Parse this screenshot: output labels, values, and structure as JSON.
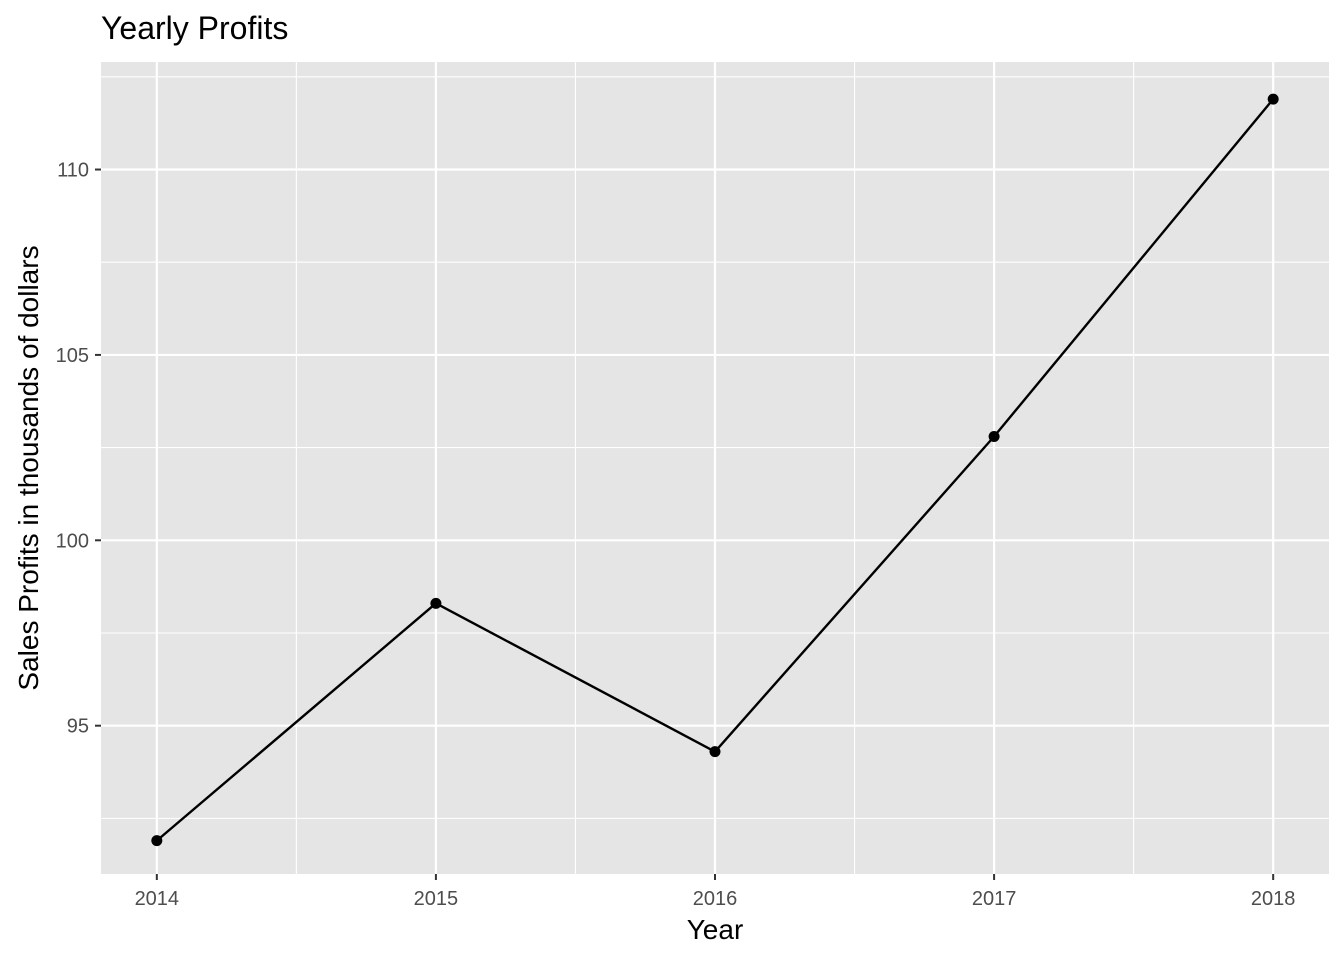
{
  "chart_data": {
    "type": "line",
    "title": "Yearly Profits",
    "xlabel": "Year",
    "ylabel": "Sales Profits in thousands of dollars",
    "x": [
      2014,
      2015,
      2016,
      2017,
      2018
    ],
    "x_tick_labels": [
      "2014",
      "2015",
      "2016",
      "2017",
      "2018"
    ],
    "series": [
      {
        "values": [
          91.9,
          98.3,
          94.3,
          102.8,
          111.9
        ],
        "color": "#000000",
        "markers": true
      }
    ],
    "y_ticks": [
      95,
      100,
      105,
      110
    ],
    "y_tick_labels": [
      "95",
      "100",
      "105",
      "110"
    ],
    "xlim": [
      2013.8,
      2018.2
    ],
    "ylim": [
      91.0,
      112.9
    ],
    "grid": true,
    "legend": "none",
    "colors": {
      "panel_background": "#e5e5e5",
      "grid": "#ffffff",
      "line": "#000000"
    }
  }
}
